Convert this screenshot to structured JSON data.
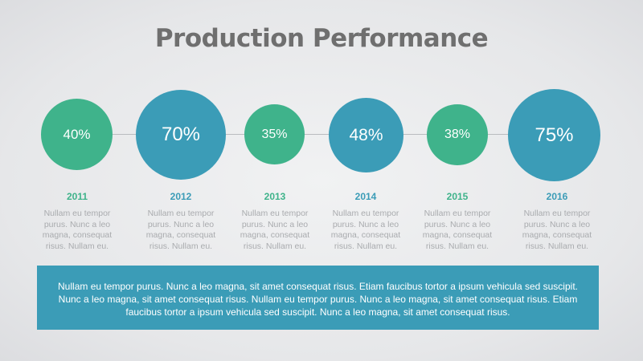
{
  "slide": {
    "title": "Production Performance",
    "colors": {
      "green": "#3fb38b",
      "blue": "#3b9cb7",
      "title": "#6f6f6f",
      "text": "#a9abae"
    }
  },
  "timeline": [
    {
      "year": "2011",
      "percent": "40%",
      "color": "green",
      "text": "Nullam eu tempor purus. Nunc a leo magna, consequat risus. Nullam eu."
    },
    {
      "year": "2012",
      "percent": "70%",
      "color": "blue",
      "text": "Nullam eu tempor purus. Nunc a leo magna, consequat risus. Nullam eu."
    },
    {
      "year": "2013",
      "percent": "35%",
      "color": "green",
      "text": "Nullam eu tempor purus. Nunc a leo magna, consequat risus. Nullam eu."
    },
    {
      "year": "2014",
      "percent": "48%",
      "color": "blue",
      "text": "Nullam eu tempor purus. Nunc a leo magna, consequat risus. Nullam eu."
    },
    {
      "year": "2015",
      "percent": "38%",
      "color": "green",
      "text": "Nullam eu tempor purus. Nunc a leo magna, consequat risus. Nullam eu."
    },
    {
      "year": "2016",
      "percent": "75%",
      "color": "blue",
      "text": "Nullam eu tempor purus. Nunc a leo magna, consequat risus. Nullam eu."
    }
  ],
  "banner": {
    "text": "Nullam eu tempor purus. Nunc a leo magna, sit amet consequat risus. Etiam faucibus tortor a ipsum vehicula sed suscipit. Nunc a leo magna, sit amet consequat risus. Nullam eu tempor purus. Nunc a leo magna, sit amet consequat risus. Etiam faucibus tortor a ipsum vehicula sed suscipit. Nunc a leo magna, sit amet consequat risus."
  }
}
